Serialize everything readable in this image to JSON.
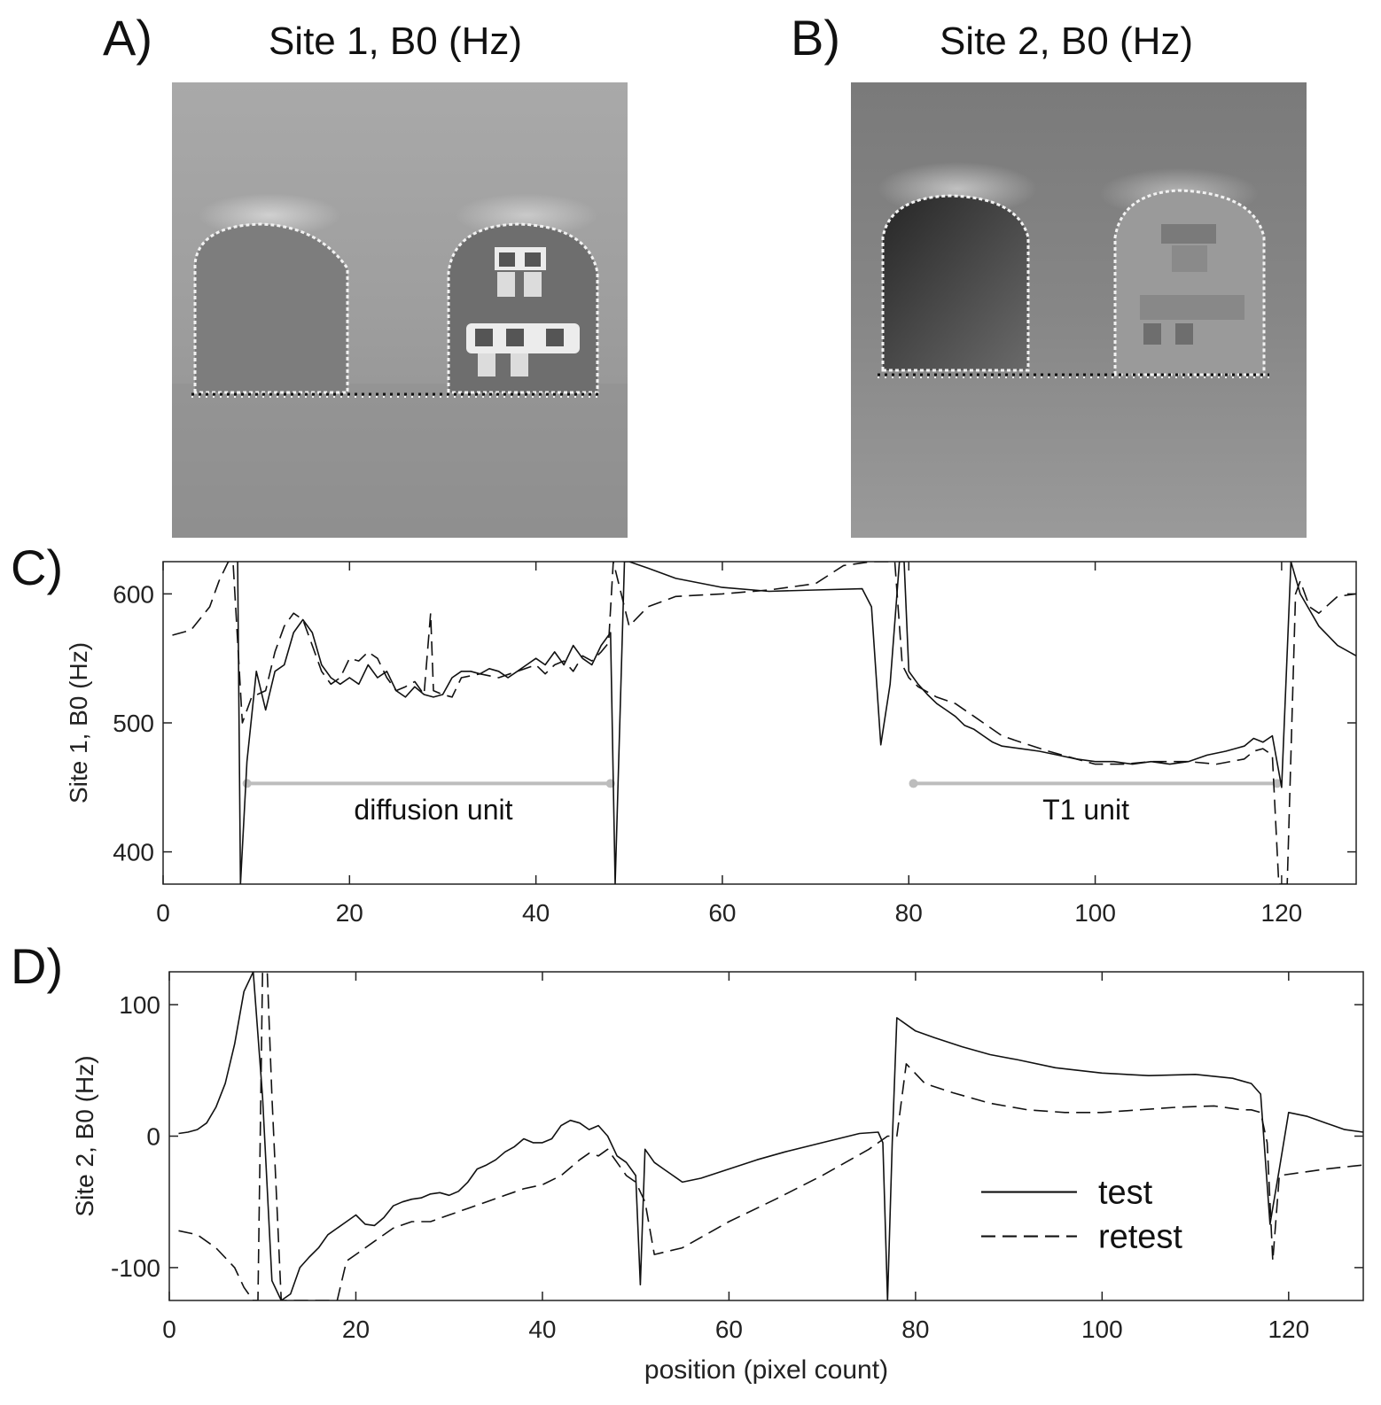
{
  "panels": {
    "a": {
      "letter": "A)",
      "title": "Site 1, B0 (Hz)"
    },
    "b": {
      "letter": "B)",
      "title": "Site 2, B0 (Hz)"
    },
    "c": {
      "letter": "C)"
    },
    "d": {
      "letter": "D)"
    }
  },
  "chart_data": [
    {
      "type": "line",
      "panel": "C",
      "xlabel": "",
      "ylabel": "Site 1, B0 (Hz)",
      "xlim": [
        0,
        128
      ],
      "ylim": [
        375,
        625
      ],
      "xticks": [
        0,
        20,
        40,
        60,
        80,
        100,
        120
      ],
      "yticks": [
        400,
        500,
        600
      ],
      "grid": false,
      "series": [
        {
          "name": "test",
          "style": "solid",
          "x": [
            8,
            8.3,
            9,
            10,
            11,
            12,
            13,
            14,
            15,
            16,
            17,
            18,
            19,
            20,
            21,
            22,
            23,
            24,
            25,
            26,
            27,
            28,
            29,
            30,
            31,
            32,
            33,
            34,
            35,
            36,
            37,
            38,
            39,
            40,
            41,
            42,
            43,
            44,
            45,
            46,
            47,
            48,
            48.5,
            49.5,
            50,
            52,
            55,
            60,
            65,
            70,
            75,
            76,
            77,
            78,
            79,
            79.5,
            80,
            81,
            82,
            83,
            84,
            85,
            86,
            87,
            88,
            89,
            90,
            92,
            94,
            96,
            98,
            100,
            102,
            104,
            106,
            108,
            110,
            112,
            114,
            116,
            117,
            118,
            119,
            120,
            121,
            122,
            124,
            126,
            128
          ],
          "y": [
            625,
            375,
            470,
            540,
            510,
            540,
            545,
            570,
            580,
            570,
            545,
            535,
            530,
            535,
            530,
            545,
            535,
            540,
            525,
            520,
            528,
            522,
            520,
            522,
            535,
            540,
            540,
            538,
            542,
            540,
            535,
            540,
            545,
            550,
            545,
            555,
            545,
            560,
            550,
            545,
            560,
            570,
            375,
            625,
            625,
            620,
            612,
            605,
            602,
            603,
            604,
            590,
            483,
            530,
            625,
            625,
            540,
            530,
            522,
            515,
            510,
            505,
            498,
            495,
            490,
            485,
            482,
            480,
            478,
            475,
            472,
            470,
            470,
            468,
            470,
            468,
            470,
            475,
            478,
            482,
            488,
            485,
            490,
            450,
            625,
            600,
            575,
            560,
            552
          ]
        },
        {
          "name": "retest",
          "style": "dashed",
          "x": [
            1,
            3,
            5,
            6,
            7,
            7.5,
            8.5,
            9.5,
            11,
            12,
            13,
            14,
            15,
            16,
            17,
            18,
            19,
            20,
            21,
            22,
            23,
            24,
            25,
            26,
            27,
            28,
            28.7,
            29,
            30,
            31,
            32,
            34,
            36,
            38,
            40,
            41,
            42,
            43,
            44,
            45,
            46,
            47,
            47.8,
            48.3,
            50,
            52,
            55,
            60,
            65,
            70,
            73,
            76,
            78.5,
            79.3,
            80,
            81,
            83,
            85,
            87,
            88,
            90,
            92,
            95,
            98,
            100,
            103,
            106,
            110,
            113,
            116,
            117,
            118,
            119,
            119.7,
            120.6,
            121.5,
            122,
            123,
            124,
            126,
            128
          ],
          "y": [
            568,
            572,
            590,
            610,
            625,
            625,
            500,
            520,
            525,
            555,
            575,
            585,
            580,
            560,
            540,
            530,
            535,
            550,
            548,
            555,
            550,
            535,
            525,
            528,
            532,
            522,
            585,
            525,
            522,
            520,
            535,
            538,
            535,
            540,
            545,
            538,
            545,
            548,
            540,
            552,
            548,
            555,
            562,
            625,
            575,
            590,
            598,
            600,
            603,
            608,
            622,
            625,
            625,
            545,
            535,
            528,
            520,
            515,
            505,
            500,
            490,
            485,
            478,
            472,
            468,
            468,
            470,
            470,
            468,
            472,
            478,
            480,
            475,
            375,
            375,
            600,
            610,
            590,
            585,
            598,
            600
          ]
        }
      ],
      "annotations": [
        {
          "text": "diffusion unit",
          "x_start": 9,
          "x_end": 48,
          "y": 453,
          "label_x": 29,
          "label_y": 432
        },
        {
          "text": "T1 unit",
          "x_start": 80.5,
          "x_end": 119.5,
          "y": 453,
          "label_x": 99,
          "label_y": 432
        }
      ],
      "annotation_color": "#bdbdbd"
    },
    {
      "type": "line",
      "panel": "D",
      "xlabel": "position (pixel count)",
      "ylabel": "Site 2, B0 (Hz)",
      "xlim": [
        0,
        128
      ],
      "ylim": [
        -125,
        125
      ],
      "xticks": [
        0,
        20,
        40,
        60,
        80,
        100,
        120
      ],
      "yticks": [
        -100,
        0,
        100
      ],
      "grid": false,
      "legend": {
        "position": "bottom-right",
        "entries": [
          "test",
          "retest"
        ]
      },
      "series": [
        {
          "name": "test",
          "style": "solid",
          "x": [
            1,
            2,
            3,
            4,
            5,
            6,
            7,
            8,
            9,
            10,
            11,
            12,
            13,
            14,
            15,
            16,
            17,
            18,
            19,
            20,
            21,
            22,
            23,
            24,
            25,
            26,
            27,
            28,
            29,
            30,
            31,
            32,
            33,
            34,
            35,
            36,
            37,
            38,
            39,
            40,
            41,
            42,
            43,
            44,
            45,
            46,
            47,
            48,
            49,
            50,
            50.5,
            51,
            52,
            53,
            54,
            55,
            57,
            60,
            63,
            66,
            70,
            74,
            76,
            76.5,
            77,
            77.5,
            78,
            80,
            82,
            85,
            88,
            91,
            95,
            100,
            105,
            110,
            114,
            115,
            116,
            117,
            118,
            119,
            120,
            122,
            124,
            126,
            128
          ],
          "y": [
            2,
            3,
            5,
            10,
            22,
            40,
            70,
            110,
            125,
            30,
            -110,
            -125,
            -120,
            -100,
            -92,
            -85,
            -75,
            -70,
            -65,
            -60,
            -67,
            -68,
            -62,
            -53,
            -50,
            -48,
            -47,
            -44,
            -43,
            -45,
            -42,
            -35,
            -25,
            -22,
            -18,
            -12,
            -8,
            -2,
            -5,
            -5,
            -2,
            8,
            12,
            10,
            5,
            8,
            0,
            -15,
            -20,
            -30,
            -113,
            -10,
            -20,
            -25,
            -30,
            -35,
            -32,
            -25,
            -18,
            -12,
            -5,
            2,
            3,
            -5,
            -125,
            -5,
            90,
            80,
            75,
            68,
            62,
            58,
            52,
            48,
            46,
            47,
            44,
            42,
            40,
            32,
            -67,
            -25,
            18,
            15,
            10,
            5,
            3
          ]
        },
        {
          "name": "retest",
          "style": "dashed",
          "x": [
            1,
            3,
            5,
            7,
            8,
            9,
            9.5,
            10,
            10.5,
            11,
            12,
            13,
            15,
            18,
            19,
            20,
            21,
            22,
            24,
            26,
            28,
            30,
            32,
            34,
            36,
            38,
            40,
            42,
            44,
            45,
            46,
            47,
            48,
            49,
            50,
            51,
            52,
            55,
            60,
            65,
            70,
            75,
            77,
            78,
            79,
            81,
            84,
            88,
            92,
            96,
            100,
            104,
            108,
            112,
            115,
            116,
            117,
            117.7,
            118.3,
            119,
            121,
            124,
            128
          ],
          "y": [
            -72,
            -75,
            -85,
            -100,
            -115,
            -125,
            -125,
            125,
            125,
            30,
            -125,
            -125,
            -125,
            -125,
            -95,
            -90,
            -85,
            -80,
            -70,
            -65,
            -65,
            -60,
            -55,
            -50,
            -45,
            -40,
            -37,
            -30,
            -18,
            -13,
            -15,
            -10,
            -20,
            -30,
            -35,
            -50,
            -90,
            -85,
            -65,
            -48,
            -30,
            -10,
            0,
            0,
            55,
            40,
            33,
            25,
            20,
            18,
            18,
            20,
            22,
            23,
            20,
            20,
            18,
            -5,
            -95,
            -30,
            -28,
            -25,
            -22
          ]
        }
      ]
    }
  ]
}
